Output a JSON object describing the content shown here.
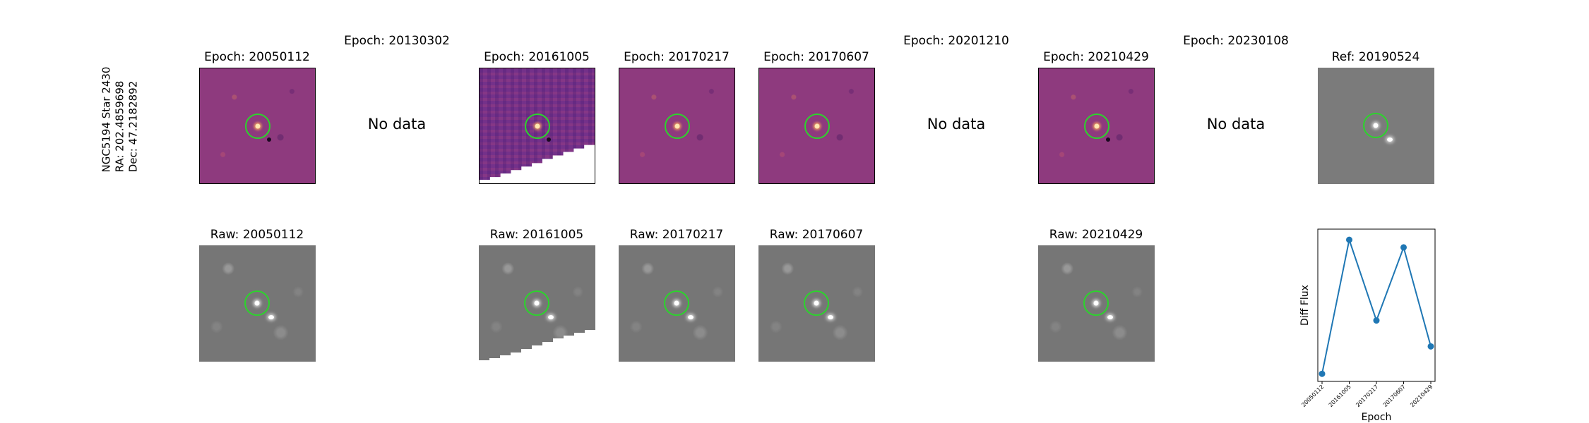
{
  "side_label": {
    "object": "NGC5194 Star 2430",
    "ra": "RA: 202.4859698",
    "dec": "Dec: 47.2182892"
  },
  "columns": [
    {
      "diff_title": "Epoch: 20050112",
      "raw_title": "Raw: 20050112",
      "status": "data"
    },
    {
      "diff_title": "Epoch: 20130302",
      "status": "no-data",
      "no_data_text": "No data"
    },
    {
      "diff_title": "Epoch: 20161005",
      "raw_title": "Raw: 20161005",
      "status": "data"
    },
    {
      "diff_title": "Epoch: 20170217",
      "raw_title": "Raw: 20170217",
      "status": "data"
    },
    {
      "diff_title": "Epoch: 20170607",
      "raw_title": "Raw: 20170607",
      "status": "data"
    },
    {
      "diff_title": "Epoch: 20201210",
      "status": "no-data",
      "no_data_text": "No data"
    },
    {
      "diff_title": "Epoch: 20210429",
      "raw_title": "Raw: 20210429",
      "status": "data"
    },
    {
      "diff_title": "Epoch: 20230108",
      "status": "no-data",
      "no_data_text": "No data"
    }
  ],
  "reference": {
    "title": "Ref: 20190524"
  },
  "colors": {
    "aperture": "#2bd52b",
    "series": "#1f77b4",
    "diff_cmap": "magma",
    "raw_cmap": "gray"
  },
  "chart_data": {
    "type": "line",
    "xlabel": "Epoch",
    "ylabel": "Diff Flux",
    "categories": [
      "20050112",
      "20161005",
      "20170217",
      "20170607",
      "20210429"
    ],
    "series": [
      {
        "values": [
          0.05,
          0.93,
          0.4,
          0.88,
          0.23
        ]
      }
    ],
    "y_tick_labels_shown": false,
    "grid": false
  }
}
